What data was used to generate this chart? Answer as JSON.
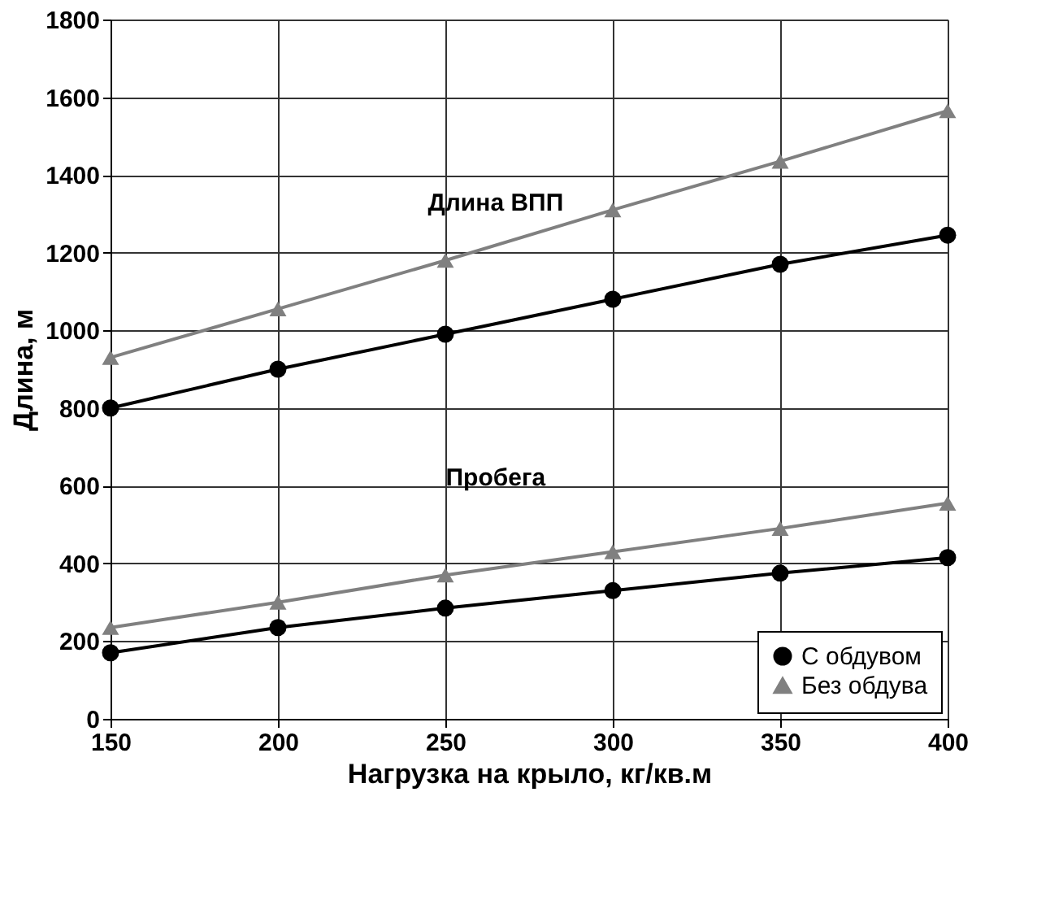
{
  "chart_data": {
    "type": "line",
    "xlabel": "Нагрузка на крыло, кг/кв.м",
    "ylabel": "Длина, м",
    "x": [
      150,
      200,
      250,
      300,
      350,
      400
    ],
    "series": [
      {
        "name": "С обдувом",
        "color": "#000000",
        "marker": "circle",
        "values": [
          800,
          900,
          990,
          1080,
          1170,
          1245
        ]
      },
      {
        "name": "Без обдува",
        "color": "#808080",
        "marker": "triangle",
        "values": [
          930,
          1055,
          1180,
          1310,
          1435,
          1565
        ]
      },
      {
        "color": "#000000",
        "marker": "circle",
        "values": [
          170,
          235,
          285,
          330,
          375,
          415
        ]
      },
      {
        "color": "#808080",
        "marker": "triangle",
        "values": [
          235,
          300,
          370,
          430,
          490,
          555
        ]
      }
    ],
    "annotations": [
      "Длина ВПП",
      "Пробега"
    ],
    "xlim": [
      150,
      400
    ],
    "xticks": [
      150,
      200,
      250,
      300,
      350,
      400
    ],
    "ylim": [
      0,
      1800
    ],
    "yticks": [
      0,
      200,
      400,
      600,
      800,
      1000,
      1200,
      1400,
      1600,
      1800
    ],
    "grid": true,
    "legend": "bottom right",
    "line_style": "solid"
  }
}
